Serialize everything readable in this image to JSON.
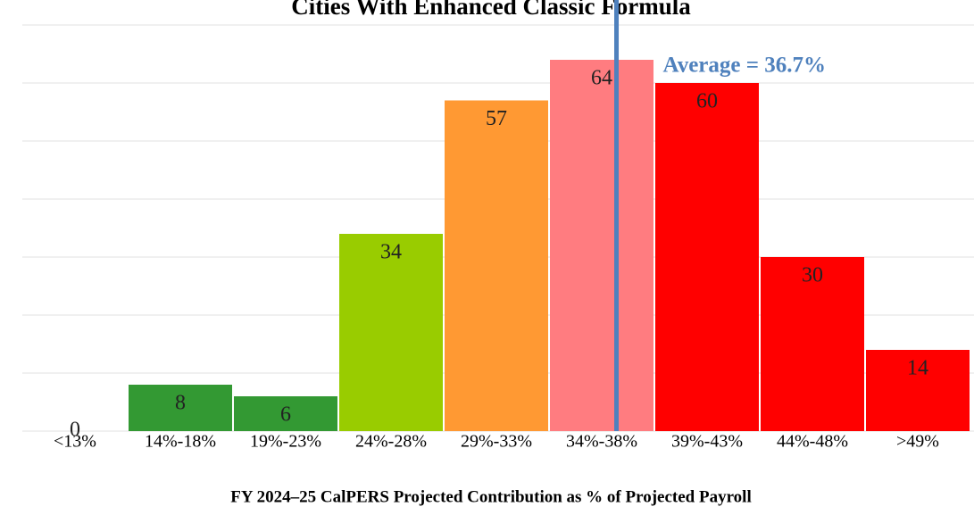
{
  "chart_data": {
    "type": "bar",
    "title": "Cities With Enhanced Classic Formula",
    "x_label": "FY 2024–25 CalPERS Projected Contribution as % of Projected Payroll",
    "categories": [
      "<13%",
      "14%-18%",
      "19%-23%",
      "24%-28%",
      "29%-33%",
      "34%-38%",
      "39%-43%",
      "44%-48%",
      ">49%"
    ],
    "values": [
      0,
      8,
      6,
      34,
      57,
      64,
      60,
      30,
      14
    ],
    "colors": [
      "#339933",
      "#339933",
      "#339933",
      "#99cc00",
      "#ff9933",
      "#ff7c80",
      "#ff0000",
      "#ff0000",
      "#ff0000"
    ],
    "ylim": [
      0,
      74
    ],
    "yticks": [
      0,
      10,
      20,
      30,
      40,
      50,
      60,
      70
    ],
    "grid": true,
    "xlim": [
      8.5,
      53.5
    ],
    "average": {
      "value": 36.7,
      "label": "Average = 36.7%",
      "color": "#4f81bd"
    }
  }
}
